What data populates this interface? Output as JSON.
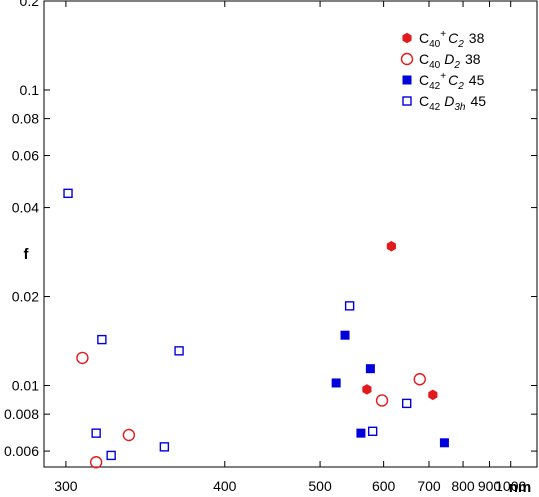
{
  "chart_data": {
    "type": "scatter",
    "title": "",
    "xlabel": "nm",
    "ylabel": "f",
    "xscale": "reciprocal",
    "yscale": "log",
    "xlim": [
      290,
      1160
    ],
    "ylim": [
      0.0053,
      0.2
    ],
    "grid": false,
    "legend_position": "top-right",
    "x_ticks": [
      300,
      400,
      500,
      600,
      700,
      800,
      900,
      1000
    ],
    "y_ticks": [
      0.006,
      0.008,
      0.01,
      0.02,
      0.04,
      0.06,
      0.08,
      0.1,
      0.2
    ],
    "y_tick_labels": [
      "0.006",
      "0.008",
      "0.01",
      "0.02",
      "0.04",
      "0.06",
      "0.08",
      "0.1",
      "0.2"
    ],
    "series": [
      {
        "legend_mol": "C",
        "legend_sub": "40",
        "legend_sup": "+",
        "legend_sym": "C",
        "legend_symsub": "2",
        "legend_num": "38",
        "marker": "filled-hexagon",
        "color": "#e31a1c",
        "points": [
          [
            615,
            0.0296
          ],
          [
            570,
            0.0097
          ],
          [
            710,
            0.0093
          ]
        ]
      },
      {
        "legend_mol": "C",
        "legend_sub": "40",
        "legend_sup": "",
        "legend_sym": "D",
        "legend_symsub": "2",
        "legend_num": "38",
        "marker": "open-circle",
        "color": "#e31a1c",
        "points": [
          [
            308,
            0.0124
          ],
          [
            315,
            0.0055
          ],
          [
            333,
            0.0068
          ],
          [
            597,
            0.0089
          ],
          [
            677,
            0.0105
          ]
        ]
      },
      {
        "legend_mol": "C",
        "legend_sub": "42",
        "legend_sup": "+",
        "legend_sym": "C",
        "legend_symsub": "2",
        "legend_num": "45",
        "marker": "filled-square",
        "color": "#0000dd",
        "points": [
          [
            522,
            0.0102
          ],
          [
            535,
            0.0148
          ],
          [
            560,
            0.0069
          ],
          [
            576,
            0.0114
          ],
          [
            742,
            0.0064
          ]
        ]
      },
      {
        "legend_mol": "C",
        "legend_sub": "42",
        "legend_sup": "",
        "legend_sym": "D",
        "legend_symsub": "3h",
        "legend_num": "45",
        "marker": "open-square",
        "color": "#0000dd",
        "points": [
          [
            301,
            0.0447
          ],
          [
            315,
            0.0069
          ],
          [
            318,
            0.0143
          ],
          [
            323,
            0.0058
          ],
          [
            355,
            0.0062
          ],
          [
            365,
            0.0131
          ],
          [
            542,
            0.0186
          ],
          [
            580,
            0.007
          ],
          [
            647,
            0.0087
          ]
        ]
      }
    ]
  }
}
